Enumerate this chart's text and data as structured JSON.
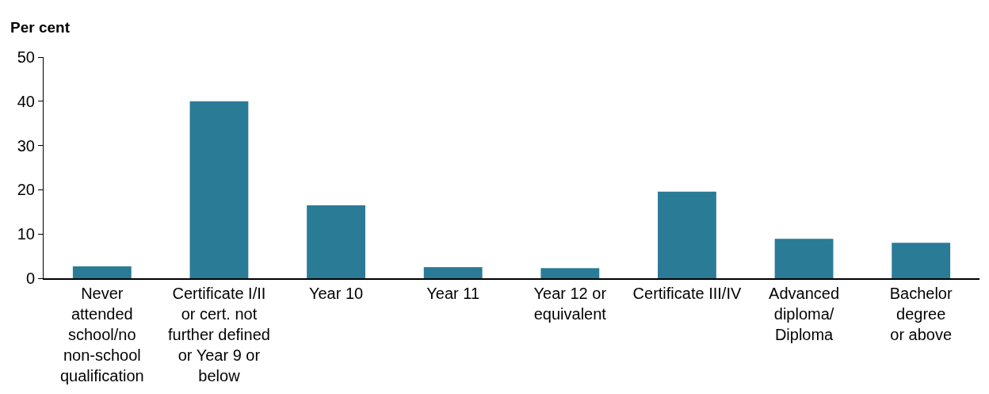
{
  "chart_data": {
    "type": "bar",
    "ylabel": "Per cent",
    "categories": [
      "Never\nattended\nschool/no\nnon-school\nqualification",
      "Certificate I/II\nor cert. not\nfurther defined\nor Year 9 or\nbelow",
      "Year 10",
      "Year 11",
      "Year 12 or\nequivalent",
      "Certificate III/IV",
      "Advanced\ndiploma/\nDiploma",
      "Bachelor\ndegree\nor above"
    ],
    "values": [
      2.7,
      40,
      16.5,
      2.5,
      2.3,
      19.6,
      8.9,
      8.0
    ],
    "color": "#2a7b96",
    "ylim": [
      0,
      50
    ],
    "yticks": [
      0,
      10,
      20,
      30,
      40,
      50
    ]
  }
}
